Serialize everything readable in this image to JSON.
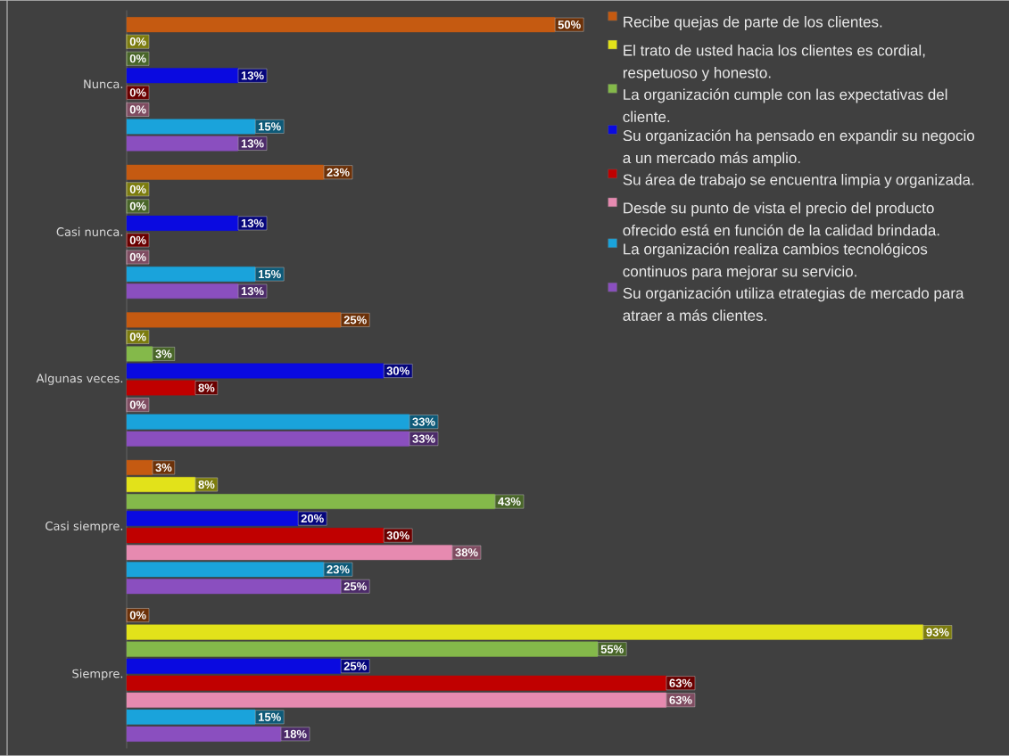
{
  "chart_data": {
    "type": "bar",
    "orientation": "horizontal",
    "categories": [
      "Nunca.",
      "Casi nunca.",
      "Algunas veces.",
      "Casi siempre.",
      "Siempre."
    ],
    "tick_labels": "y",
    "legend": "top right",
    "series": [
      {
        "name": "Recibe quejas de parte de los clientes.",
        "color": "#c55a11",
        "values": [
          50,
          23,
          25,
          3,
          0
        ],
        "value_labels": [
          "50%",
          "23%",
          "25%",
          "3%",
          "0%"
        ]
      },
      {
        "name": "El trato de usted hacia los clientes es cordial, respetuoso y honesto.",
        "color": "#e2e21a",
        "values": [
          0,
          0,
          0,
          8,
          93
        ],
        "value_labels": [
          "0%",
          "0%",
          "0%",
          "8%",
          "93%"
        ]
      },
      {
        "name": "La organización cumple con las expectativas del cliente.",
        "color": "#84b94a",
        "values": [
          0,
          0,
          3,
          43,
          55
        ],
        "value_labels": [
          "0%",
          "0%",
          "3%",
          "43%",
          "55%"
        ]
      },
      {
        "name": "Su organización ha pensado en expandir su negocio a un mercado más amplio.",
        "color": "#0a0ae0",
        "values": [
          13,
          13,
          30,
          20,
          25
        ],
        "value_labels": [
          "13%",
          "13%",
          "30%",
          "20%",
          "25%"
        ]
      },
      {
        "name": "Su área de trabajo se encuentra limpia y organizada.",
        "color": "#c00000",
        "values": [
          0,
          0,
          8,
          30,
          63
        ],
        "value_labels": [
          "0%",
          "0%",
          "8%",
          "30%",
          "63%"
        ]
      },
      {
        "name": "Desde su punto de vista el precio del producto ofrecido está en función de la calidad brindada.",
        "color": "#e68ab0",
        "values": [
          0,
          0,
          0,
          38,
          63
        ],
        "value_labels": [
          "0%",
          "0%",
          "0%",
          "38%",
          "63%"
        ]
      },
      {
        "name": "La organización realiza cambios tecnológicos continuos para mejorar su servicio.",
        "color": "#1aa3db",
        "values": [
          15,
          15,
          33,
          23,
          15
        ],
        "value_labels": [
          "15%",
          "15%",
          "33%",
          "23%",
          "15%"
        ]
      },
      {
        "name": "Su organización utiliza etrategias de mercado para atraer a más clientes.",
        "color": "#8a4fbf",
        "values": [
          13,
          13,
          33,
          25,
          18
        ],
        "value_labels": [
          "13%",
          "13%",
          "33%",
          "25%",
          "18%"
        ]
      }
    ]
  }
}
